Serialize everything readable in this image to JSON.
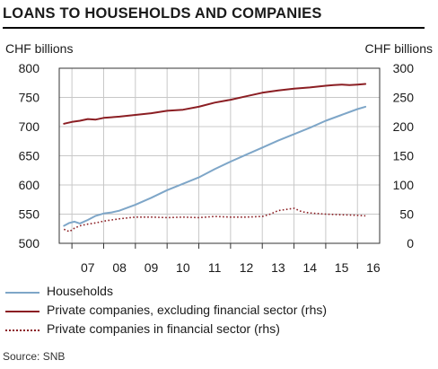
{
  "title": "LOANS TO HOUSEHOLDS AND COMPANIES",
  "source": "Source: SNB",
  "colors": {
    "households": "#7ea6c8",
    "private_companies": "#8b1e23",
    "financial_sector": "#8b1e23",
    "grid": "#c8c8c8",
    "axis": "#333333"
  },
  "chart_data": {
    "type": "line",
    "left_axis": {
      "label": "CHF billions",
      "range": [
        500,
        800
      ],
      "ticks": [
        500,
        550,
        600,
        650,
        700,
        750,
        800
      ]
    },
    "right_axis": {
      "label": "CHF billions",
      "range": [
        0,
        300
      ],
      "ticks": [
        0,
        50,
        100,
        150,
        200,
        250,
        300
      ]
    },
    "x_axis": {
      "range": [
        2006.6,
        2016.7
      ],
      "tick_labels": [
        "07",
        "08",
        "09",
        "10",
        "11",
        "12",
        "13",
        "14",
        "15",
        "16"
      ],
      "tick_positions": [
        2007,
        2008,
        2009,
        2010,
        2011,
        2012,
        2013,
        2014,
        2015,
        2016
      ]
    },
    "grid": true,
    "legend_position": "bottom",
    "series": [
      {
        "name": "Households",
        "axis": "left",
        "style": "solid",
        "x": [
          2006.75,
          2006.92,
          2007.08,
          2007.25,
          2007.5,
          2007.75,
          2008.0,
          2008.25,
          2008.5,
          2008.75,
          2009.0,
          2009.5,
          2010.0,
          2010.5,
          2011.0,
          2011.5,
          2012.0,
          2012.5,
          2013.0,
          2013.5,
          2014.0,
          2014.5,
          2015.0,
          2015.5,
          2016.0,
          2016.25
        ],
        "y": [
          530,
          535,
          537,
          534,
          540,
          547,
          551,
          553,
          556,
          561,
          566,
          578,
          591,
          602,
          613,
          627,
          640,
          652,
          664,
          676,
          687,
          698,
          710,
          720,
          730,
          734
        ]
      },
      {
        "name": "Private companies, excluding financial sector (rhs)",
        "axis": "right",
        "style": "solid",
        "x": [
          2006.75,
          2007.0,
          2007.25,
          2007.5,
          2007.75,
          2008.0,
          2008.25,
          2008.5,
          2009.0,
          2009.5,
          2010.0,
          2010.5,
          2011.0,
          2011.5,
          2012.0,
          2012.5,
          2013.0,
          2013.5,
          2014.0,
          2014.5,
          2015.0,
          2015.25,
          2015.5,
          2015.75,
          2016.0,
          2016.25
        ],
        "y": [
          205,
          208,
          210,
          213,
          212,
          215,
          216,
          217,
          220,
          223,
          227,
          229,
          234,
          241,
          246,
          252,
          258,
          262,
          265,
          267,
          270,
          271,
          272,
          271,
          272,
          273
        ]
      },
      {
        "name": "Private companies in financial sector (rhs)",
        "axis": "right",
        "style": "dotted",
        "x": [
          2006.75,
          2006.92,
          2007.08,
          2007.25,
          2007.5,
          2007.75,
          2008.0,
          2008.5,
          2009.0,
          2009.5,
          2010.0,
          2010.5,
          2011.0,
          2011.5,
          2012.0,
          2012.5,
          2013.0,
          2013.25,
          2013.5,
          2013.75,
          2014.0,
          2014.25,
          2014.5,
          2015.0,
          2015.5,
          2016.0,
          2016.25
        ],
        "y": [
          24,
          20,
          26,
          30,
          33,
          35,
          38,
          42,
          45,
          45,
          44,
          45,
          44,
          46,
          45,
          45,
          46,
          50,
          56,
          58,
          60,
          54,
          52,
          50,
          49,
          48,
          47
        ]
      }
    ]
  }
}
